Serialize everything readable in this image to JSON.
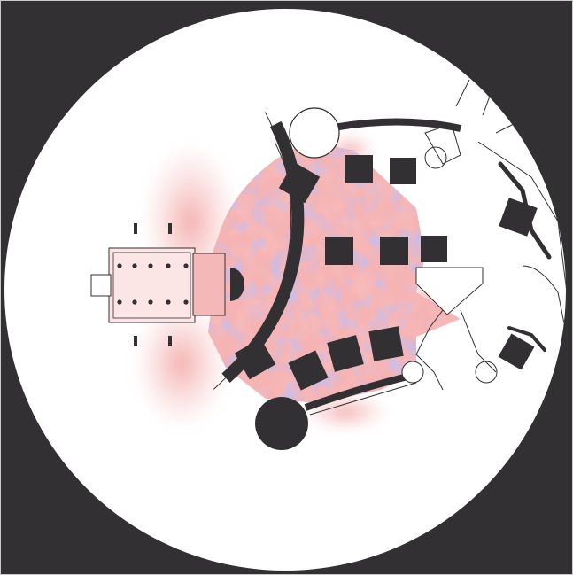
{
  "colors": {
    "background_frame": "#323032",
    "viewport_fill": "#ffffff",
    "structure": "#323032",
    "outline": "#323032",
    "positive_field": "#f08a8a",
    "positive_field_light": "#f7c4c4",
    "negative_field": "#8a8ae8",
    "negative_field_light": "#c4c4f2"
  },
  "icons": {
    "viewport": "circular-viewport-icon",
    "tower": "round-tower-icon",
    "block": "square-block-icon"
  }
}
